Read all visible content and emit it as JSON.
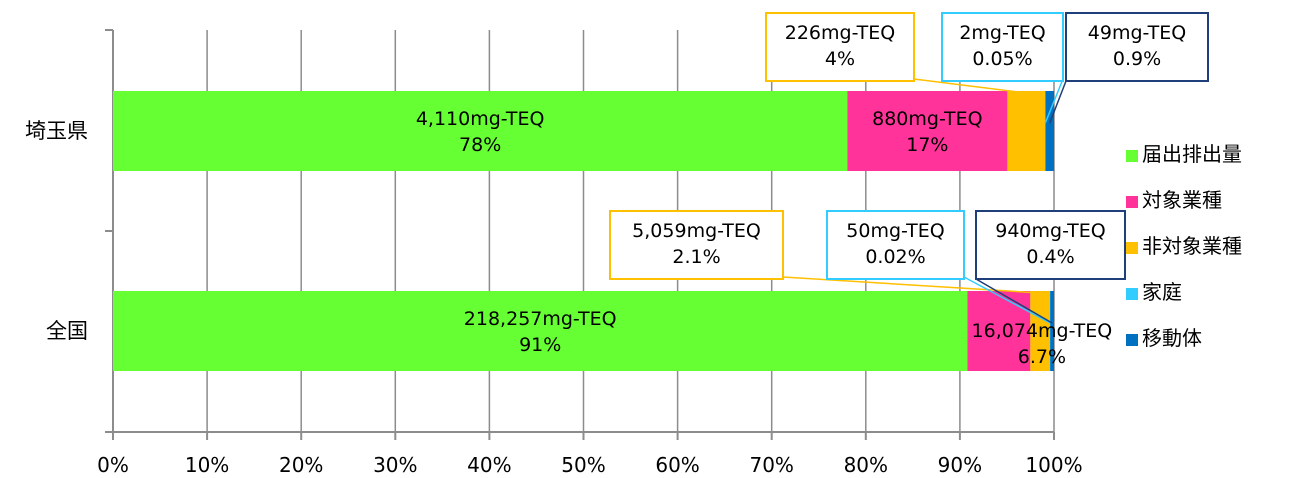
{
  "chart_data": {
    "type": "bar",
    "orientation": "horizontal",
    "stacked": true,
    "percent_stacked": true,
    "categories": [
      "埼玉県",
      "全国"
    ],
    "series": [
      {
        "name": "届出排出量",
        "color": "#66ff33",
        "values": [
          78,
          91
        ],
        "labels": [
          [
            "4,110mg-TEQ",
            "78%"
          ],
          [
            "218,257mg-TEQ",
            "91%"
          ]
        ]
      },
      {
        "name": "対象業種",
        "color": "#ff3399",
        "values": [
          17,
          6.7
        ],
        "labels": [
          [
            "880mg-TEQ",
            "17%"
          ],
          [
            "16,074mg-TEQ",
            "6.7%"
          ]
        ]
      },
      {
        "name": "非対象業種",
        "color": "#ffc000",
        "values": [
          4,
          2.1
        ],
        "labels": [
          [
            "226mg-TEQ",
            "4%"
          ],
          [
            "5,059mg-TEQ",
            "2.1%"
          ]
        ]
      },
      {
        "name": "家庭",
        "color": "#33ccff",
        "values": [
          0.05,
          0.02
        ],
        "labels": [
          [
            "2mg-TEQ",
            "0.05%"
          ],
          [
            "50mg-TEQ",
            "0.02%"
          ]
        ]
      },
      {
        "name": "移動体",
        "color": "#0070c0",
        "values": [
          0.9,
          0.4
        ],
        "labels": [
          [
            "49mg-TEQ",
            "0.9%"
          ],
          [
            "940mg-TEQ",
            "0.4%"
          ]
        ]
      }
    ],
    "xlim": [
      0,
      100
    ],
    "x_ticks": [
      "0%",
      "10%",
      "20%",
      "30%",
      "40%",
      "50%",
      "60%",
      "70%",
      "80%",
      "90%",
      "100%"
    ],
    "grid": true,
    "legend_position": "right"
  }
}
